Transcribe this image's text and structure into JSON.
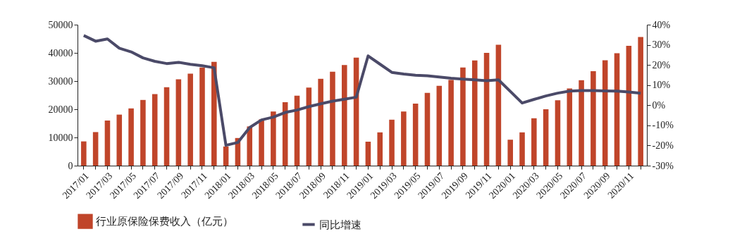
{
  "chart_data": {
    "type": "bar",
    "categories": [
      "2017/01",
      null,
      "2017/03",
      null,
      "2017/05",
      null,
      "2017/07",
      null,
      "2017/09",
      null,
      "2017/11",
      null,
      "2018/01",
      null,
      "2018/03",
      null,
      "2018/05",
      null,
      "2018/07",
      null,
      "2018/09",
      null,
      "2018/11",
      null,
      "2019/01",
      null,
      "2019/03",
      null,
      "2019/05",
      null,
      "2019/07",
      null,
      "2019/09",
      null,
      "2019/11",
      null,
      "2020/01",
      null,
      "2020/03",
      null,
      "2020/05",
      null,
      "2020/07",
      null,
      "2020/09",
      null,
      "2020/11",
      null
    ],
    "series": [
      {
        "name": "行业原保险保费收入（亿元）",
        "color": "#c0452a",
        "values": [
          8600,
          11900,
          16000,
          18100,
          20300,
          23300,
          25400,
          27800,
          30600,
          32600,
          34800,
          36800,
          6800,
          9800,
          13900,
          16400,
          19200,
          22500,
          24800,
          27700,
          30800,
          33300,
          35700,
          38300,
          8500,
          11800,
          16300,
          19200,
          22000,
          25800,
          28300,
          30400,
          34800,
          37300,
          40000,
          42900,
          9200,
          11800,
          16800,
          20000,
          23200,
          27400,
          30300,
          33500,
          37400,
          39900,
          42500,
          45600
        ]
      },
      {
        "name": "同比增速",
        "type": "line",
        "axis": "y2",
        "color": "#4b4a68",
        "values": [
          34.6,
          31.8,
          32.9,
          28.3,
          26.5,
          23.5,
          21.8,
          20.7,
          21.3,
          20.3,
          19.6,
          18.6,
          -19.9,
          -18.5,
          -11.1,
          -7.3,
          -5.9,
          -3.6,
          -2.4,
          -0.7,
          0.7,
          2.0,
          3.0,
          4.0,
          24.5,
          20.4,
          16.3,
          15.5,
          14.9,
          14.6,
          14.0,
          13.4,
          13.0,
          12.6,
          12.2,
          12.6,
          6.9,
          1.1,
          2.9,
          4.6,
          6.0,
          7.0,
          7.3,
          7.3,
          7.1,
          7.0,
          6.6,
          6.0
        ]
      }
    ],
    "ylim": [
      0,
      50000
    ],
    "yticks": [
      0,
      10000,
      20000,
      30000,
      40000,
      50000
    ],
    "y2lim": [
      -30,
      40
    ],
    "y2ticks": [
      {
        "value": -30,
        "label": "-30%"
      },
      {
        "value": -20,
        "label": "-20%"
      },
      {
        "value": -10,
        "label": "-10%"
      },
      {
        "value": 0,
        "label": "0%"
      },
      {
        "value": 10,
        "label": "10%"
      },
      {
        "value": 20,
        "label": "20%"
      },
      {
        "value": 30,
        "label": "30%"
      },
      {
        "value": 40,
        "label": "40%"
      }
    ],
    "legend": "bottom",
    "grid": false,
    "marker": "none",
    "line_style": "solid"
  }
}
